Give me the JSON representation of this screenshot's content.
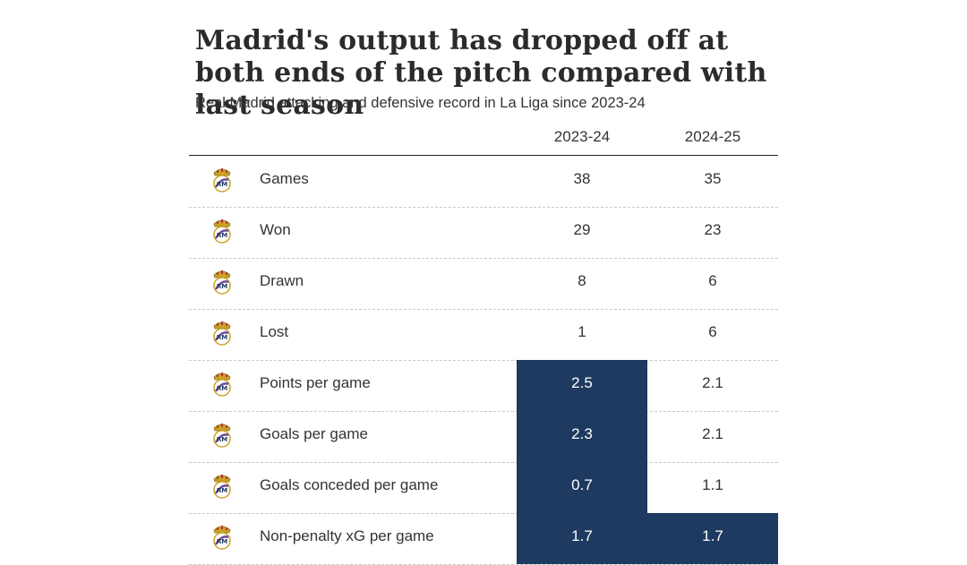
{
  "title": "Madrid's output has dropped off at both ends of the pitch compared with last season",
  "subtitle": "Real Madrid attacking and defensive record in La Liga since 2023-24",
  "colors": {
    "highlight": "#1f3a60",
    "text": "#333333"
  },
  "chart_data": {
    "type": "table",
    "columns": [
      "2023-24",
      "2024-25"
    ],
    "rows": [
      {
        "label": "Games",
        "values": [
          "38",
          "35"
        ],
        "highlight": [
          false,
          false
        ]
      },
      {
        "label": "Won",
        "values": [
          "29",
          "23"
        ],
        "highlight": [
          false,
          false
        ]
      },
      {
        "label": "Drawn",
        "values": [
          "8",
          "6"
        ],
        "highlight": [
          false,
          false
        ]
      },
      {
        "label": "Lost",
        "values": [
          "1",
          "6"
        ],
        "highlight": [
          false,
          false
        ]
      },
      {
        "label": "Points per game",
        "values": [
          "2.5",
          "2.1"
        ],
        "highlight": [
          true,
          false
        ]
      },
      {
        "label": "Goals per game",
        "values": [
          "2.3",
          "2.1"
        ],
        "highlight": [
          true,
          false
        ]
      },
      {
        "label": "Goals conceded per game",
        "values": [
          "0.7",
          "1.1"
        ],
        "highlight": [
          true,
          false
        ]
      },
      {
        "label": "Non-penalty xG per game",
        "values": [
          "1.7",
          "1.7"
        ],
        "highlight": [
          true,
          true
        ]
      }
    ],
    "row_icon": "real-madrid-crest-icon"
  }
}
